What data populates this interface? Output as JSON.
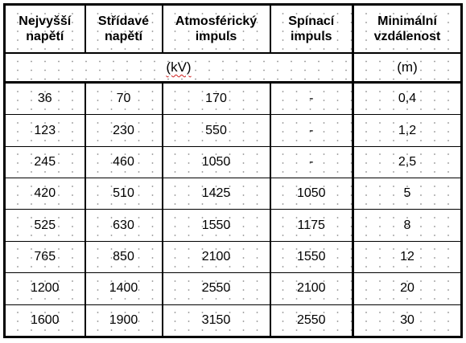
{
  "table": {
    "headers": [
      [
        "Nejvyšší",
        "napětí"
      ],
      [
        "Střídavé",
        "napětí"
      ],
      [
        "Atmosférický",
        "impuls"
      ],
      [
        "Spínací",
        "impuls"
      ],
      [
        "Minimální",
        "vzdálenost"
      ]
    ],
    "units": {
      "voltage": "(kV)",
      "distance": "(m)"
    },
    "rows": [
      [
        "36",
        "70",
        "170",
        "-",
        "0,4"
      ],
      [
        "123",
        "230",
        "550",
        "-",
        "1,2"
      ],
      [
        "245",
        "460",
        "1050",
        "-",
        "2,5"
      ],
      [
        "420",
        "510",
        "1425",
        "1050",
        "5"
      ],
      [
        "525",
        "630",
        "1550",
        "1175",
        "8"
      ],
      [
        "765",
        "850",
        "2100",
        "1550",
        "12"
      ],
      [
        "1200",
        "1400",
        "2550",
        "2100",
        "20"
      ],
      [
        "1600",
        "1900",
        "3150",
        "2550",
        "30"
      ]
    ]
  }
}
